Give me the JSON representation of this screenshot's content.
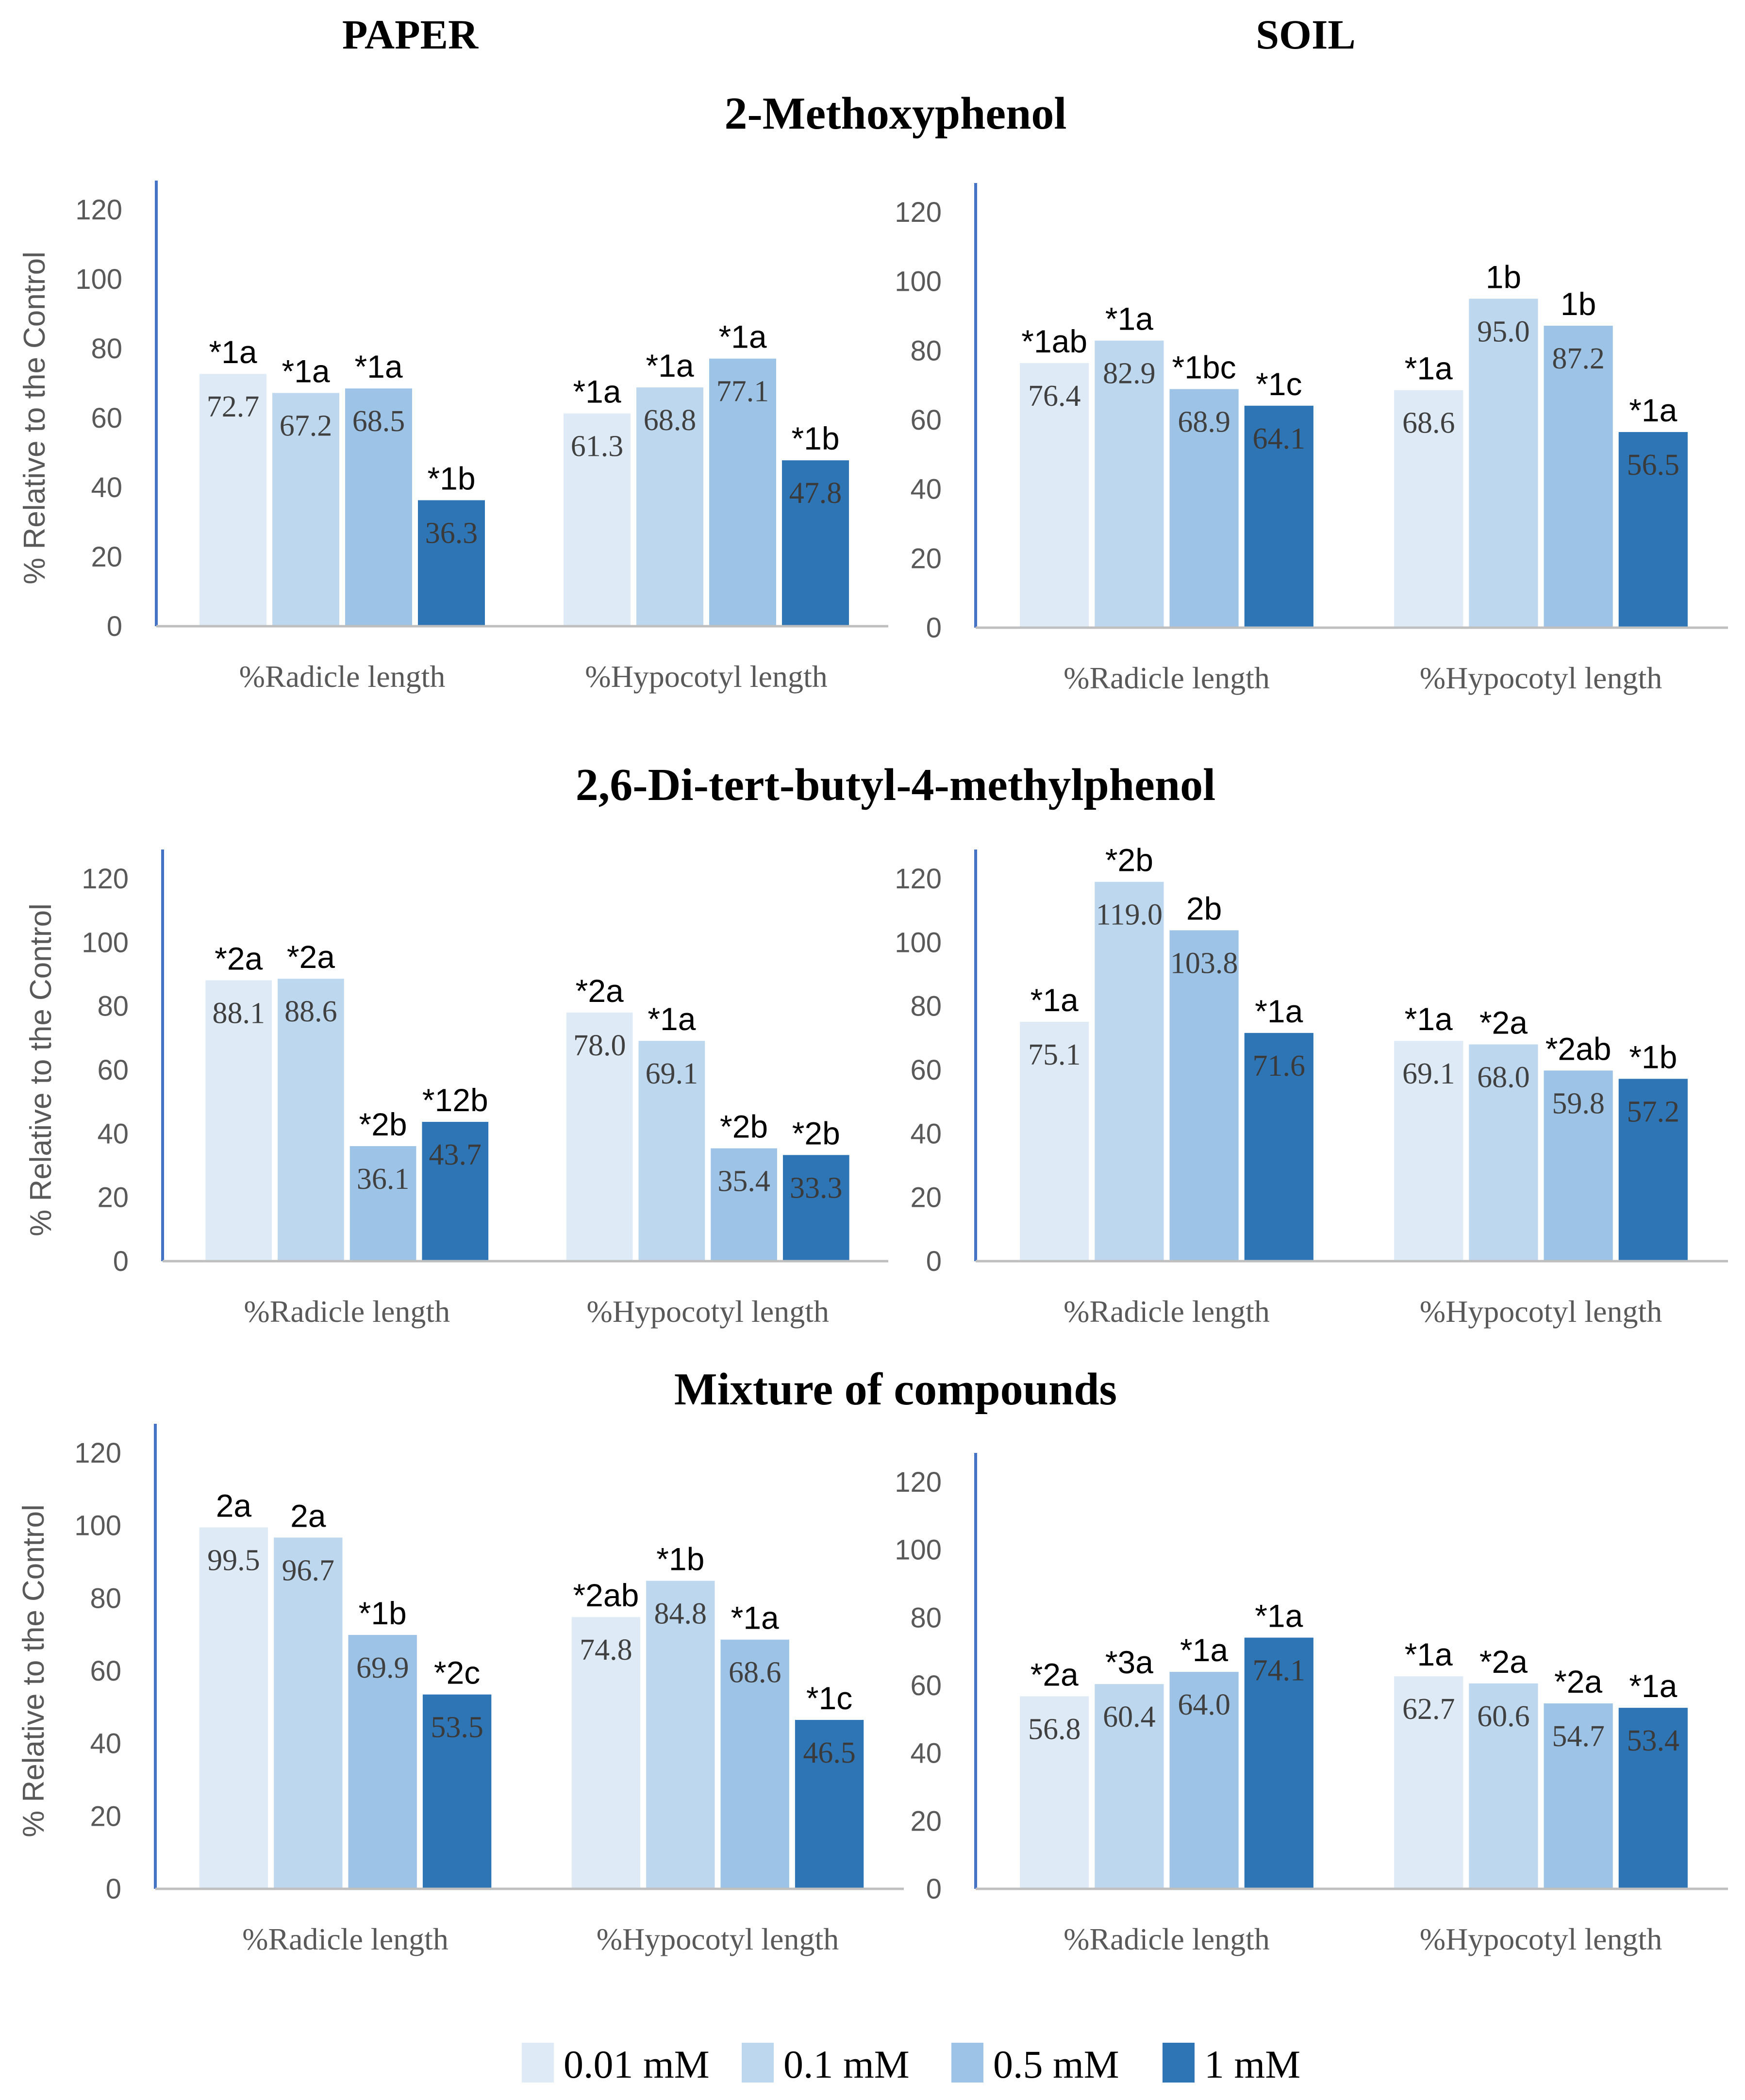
{
  "figure": {
    "column_titles": [
      "PAPER",
      "SOIL"
    ],
    "legend": [
      {
        "label": "0.01 mM",
        "color": "#DEEBF7"
      },
      {
        "label": "0.1 mM",
        "color": "#BDD7EE"
      },
      {
        "label": "0.5 mM",
        "color": "#9DC3E6"
      },
      {
        "label": "1 mM",
        "color": "#2E75B6"
      }
    ],
    "axis_color": "#4472C4"
  },
  "chart_data": [
    {
      "type": "bar",
      "panel": "2-Methoxyphenol",
      "column": "PAPER",
      "title": "2-Methoxyphenol",
      "ylabel": "% Relative to the Control",
      "ylim": [
        0,
        120
      ],
      "yticks": [
        "0",
        "20",
        "40",
        "60",
        "80",
        "100",
        "120"
      ],
      "categories": [
        "%Radicle  length",
        "%Hypocotyl  length"
      ],
      "series": [
        {
          "name": "0.01 mM",
          "values": [
            72.7,
            61.3
          ],
          "value_labels": [
            "72.7",
            "61.3"
          ],
          "annotations": [
            "*1a",
            "*1a"
          ]
        },
        {
          "name": "0.1 mM",
          "values": [
            67.2,
            68.8
          ],
          "value_labels": [
            "67.2",
            "68.8"
          ],
          "annotations": [
            "*1a",
            "*1a"
          ]
        },
        {
          "name": "0.5 mM",
          "values": [
            68.5,
            77.1
          ],
          "value_labels": [
            "68.5",
            "77.1"
          ],
          "annotations": [
            "*1a",
            "*1a"
          ]
        },
        {
          "name": "1 mM",
          "values": [
            36.3,
            47.8
          ],
          "value_labels": [
            "36.3",
            "47.8"
          ],
          "annotations": [
            "*1b",
            "*1b"
          ]
        }
      ]
    },
    {
      "type": "bar",
      "panel": "2-Methoxyphenol",
      "column": "SOIL",
      "title": "2-Methoxyphenol",
      "ylabel": "",
      "ylim": [
        0,
        120
      ],
      "yticks": [
        "0",
        "20",
        "40",
        "60",
        "80",
        "100",
        "120"
      ],
      "categories": [
        "%Radicle  length",
        "%Hypocotyl  length"
      ],
      "series": [
        {
          "name": "0.01 mM",
          "values": [
            76.4,
            68.6
          ],
          "value_labels": [
            "76.4",
            "68.6"
          ],
          "annotations": [
            "*1ab",
            "*1a"
          ]
        },
        {
          "name": "0.1 mM",
          "values": [
            82.9,
            95.0
          ],
          "value_labels": [
            "82.9",
            "95.0"
          ],
          "annotations": [
            "*1a",
            "1b"
          ]
        },
        {
          "name": "0.5 mM",
          "values": [
            68.9,
            87.2
          ],
          "value_labels": [
            "68.9",
            "87.2"
          ],
          "annotations": [
            "*1bc",
            "1b"
          ]
        },
        {
          "name": "1 mM",
          "values": [
            64.1,
            56.5
          ],
          "value_labels": [
            "64.1",
            "56.5"
          ],
          "annotations": [
            "*1c",
            "*1a"
          ]
        }
      ]
    },
    {
      "type": "bar",
      "panel": "2,6-Di-tert-butyl-4-methylphenol",
      "column": "PAPER",
      "title": "2,6-Di-tert-butyl-4-methylphenol",
      "ylabel": "% Relative to the Control",
      "ylim": [
        0,
        120
      ],
      "yticks": [
        "0",
        "20",
        "40",
        "60",
        "80",
        "100",
        "120"
      ],
      "categories": [
        "%Radicle  length",
        "%Hypocotyl  length"
      ],
      "series": [
        {
          "name": "0.01 mM",
          "values": [
            88.1,
            78.0
          ],
          "value_labels": [
            "88.1",
            "78.0"
          ],
          "annotations": [
            "*2a",
            "*2a"
          ]
        },
        {
          "name": "0.1 mM",
          "values": [
            88.6,
            69.1
          ],
          "value_labels": [
            "88.6",
            "69.1"
          ],
          "annotations": [
            "*2a",
            "*1a"
          ]
        },
        {
          "name": "0.5 mM",
          "values": [
            36.1,
            35.4
          ],
          "value_labels": [
            "36.1",
            "35.4"
          ],
          "annotations": [
            "*2b",
            "*2b"
          ]
        },
        {
          "name": "1 mM",
          "values": [
            43.7,
            33.3
          ],
          "value_labels": [
            "43.7",
            "33.3"
          ],
          "annotations": [
            "*12b",
            "*2b"
          ]
        }
      ]
    },
    {
      "type": "bar",
      "panel": "2,6-Di-tert-butyl-4-methylphenol",
      "column": "SOIL",
      "title": "2,6-Di-tert-butyl-4-methylphenol",
      "ylabel": "",
      "ylim": [
        0,
        120
      ],
      "yticks": [
        "0",
        "20",
        "40",
        "60",
        "80",
        "100",
        "120"
      ],
      "categories": [
        "%Radicle  length",
        "%Hypocotyl  length"
      ],
      "series": [
        {
          "name": "0.01 mM",
          "values": [
            75.1,
            69.1
          ],
          "value_labels": [
            "75.1",
            "69.1"
          ],
          "annotations": [
            "*1a",
            "*1a"
          ]
        },
        {
          "name": "0.1 mM",
          "values": [
            119.0,
            68.0
          ],
          "value_labels": [
            "119.0",
            "68.0"
          ],
          "annotations": [
            "*2b",
            "*2a"
          ]
        },
        {
          "name": "0.5 mM",
          "values": [
            103.8,
            59.8
          ],
          "value_labels": [
            "103.8",
            "59.8"
          ],
          "annotations": [
            "2b",
            "*2ab"
          ]
        },
        {
          "name": "1 mM",
          "values": [
            71.6,
            57.2
          ],
          "value_labels": [
            "71.6",
            "57.2"
          ],
          "annotations": [
            "*1a",
            "*1b"
          ]
        }
      ]
    },
    {
      "type": "bar",
      "panel": "Mixture of compounds",
      "column": "PAPER",
      "title": "Mixture of compounds",
      "ylabel": "% Relative to the Control",
      "ylim": [
        0,
        120
      ],
      "yticks": [
        "0",
        "20",
        "40",
        "60",
        "80",
        "100",
        "120"
      ],
      "categories": [
        "%Radicle  length",
        "%Hypocotyl  length"
      ],
      "series": [
        {
          "name": "0.01 mM",
          "values": [
            99.5,
            74.8
          ],
          "value_labels": [
            "99.5",
            "74.8"
          ],
          "annotations": [
            "2a",
            "*2ab"
          ]
        },
        {
          "name": "0.1 mM",
          "values": [
            96.7,
            84.8
          ],
          "value_labels": [
            "96.7",
            "84.8"
          ],
          "annotations": [
            "2a",
            "*1b"
          ]
        },
        {
          "name": "0.5 mM",
          "values": [
            69.9,
            68.6
          ],
          "value_labels": [
            "69.9",
            "68.6"
          ],
          "annotations": [
            "*1b",
            "*1a"
          ]
        },
        {
          "name": "1 mM",
          "values": [
            53.5,
            46.5
          ],
          "value_labels": [
            "53.5",
            "46.5"
          ],
          "annotations": [
            "*2c",
            "*1c"
          ]
        }
      ]
    },
    {
      "type": "bar",
      "panel": "Mixture of compounds",
      "column": "SOIL",
      "title": "Mixture of compounds",
      "ylabel": "",
      "ylim": [
        0,
        120
      ],
      "yticks": [
        "0",
        "20",
        "40",
        "60",
        "80",
        "100",
        "120"
      ],
      "categories": [
        "%Radicle  length",
        "%Hypocotyl  length"
      ],
      "series": [
        {
          "name": "0.01 mM",
          "values": [
            56.8,
            62.7
          ],
          "value_labels": [
            "56.8",
            "62.7"
          ],
          "annotations": [
            "*2a",
            "*1a"
          ]
        },
        {
          "name": "0.1 mM",
          "values": [
            60.4,
            60.6
          ],
          "value_labels": [
            "60.4",
            "60.6"
          ],
          "annotations": [
            "*3a",
            "*2a"
          ]
        },
        {
          "name": "0.5 mM",
          "values": [
            64.0,
            54.7
          ],
          "value_labels": [
            "64.0",
            "54.7"
          ],
          "annotations": [
            "*1a",
            "*2a"
          ]
        },
        {
          "name": "1 mM",
          "values": [
            74.1,
            53.4
          ],
          "value_labels": [
            "74.1",
            "53.4"
          ],
          "annotations": [
            "*1a",
            "*1a"
          ]
        }
      ]
    }
  ]
}
